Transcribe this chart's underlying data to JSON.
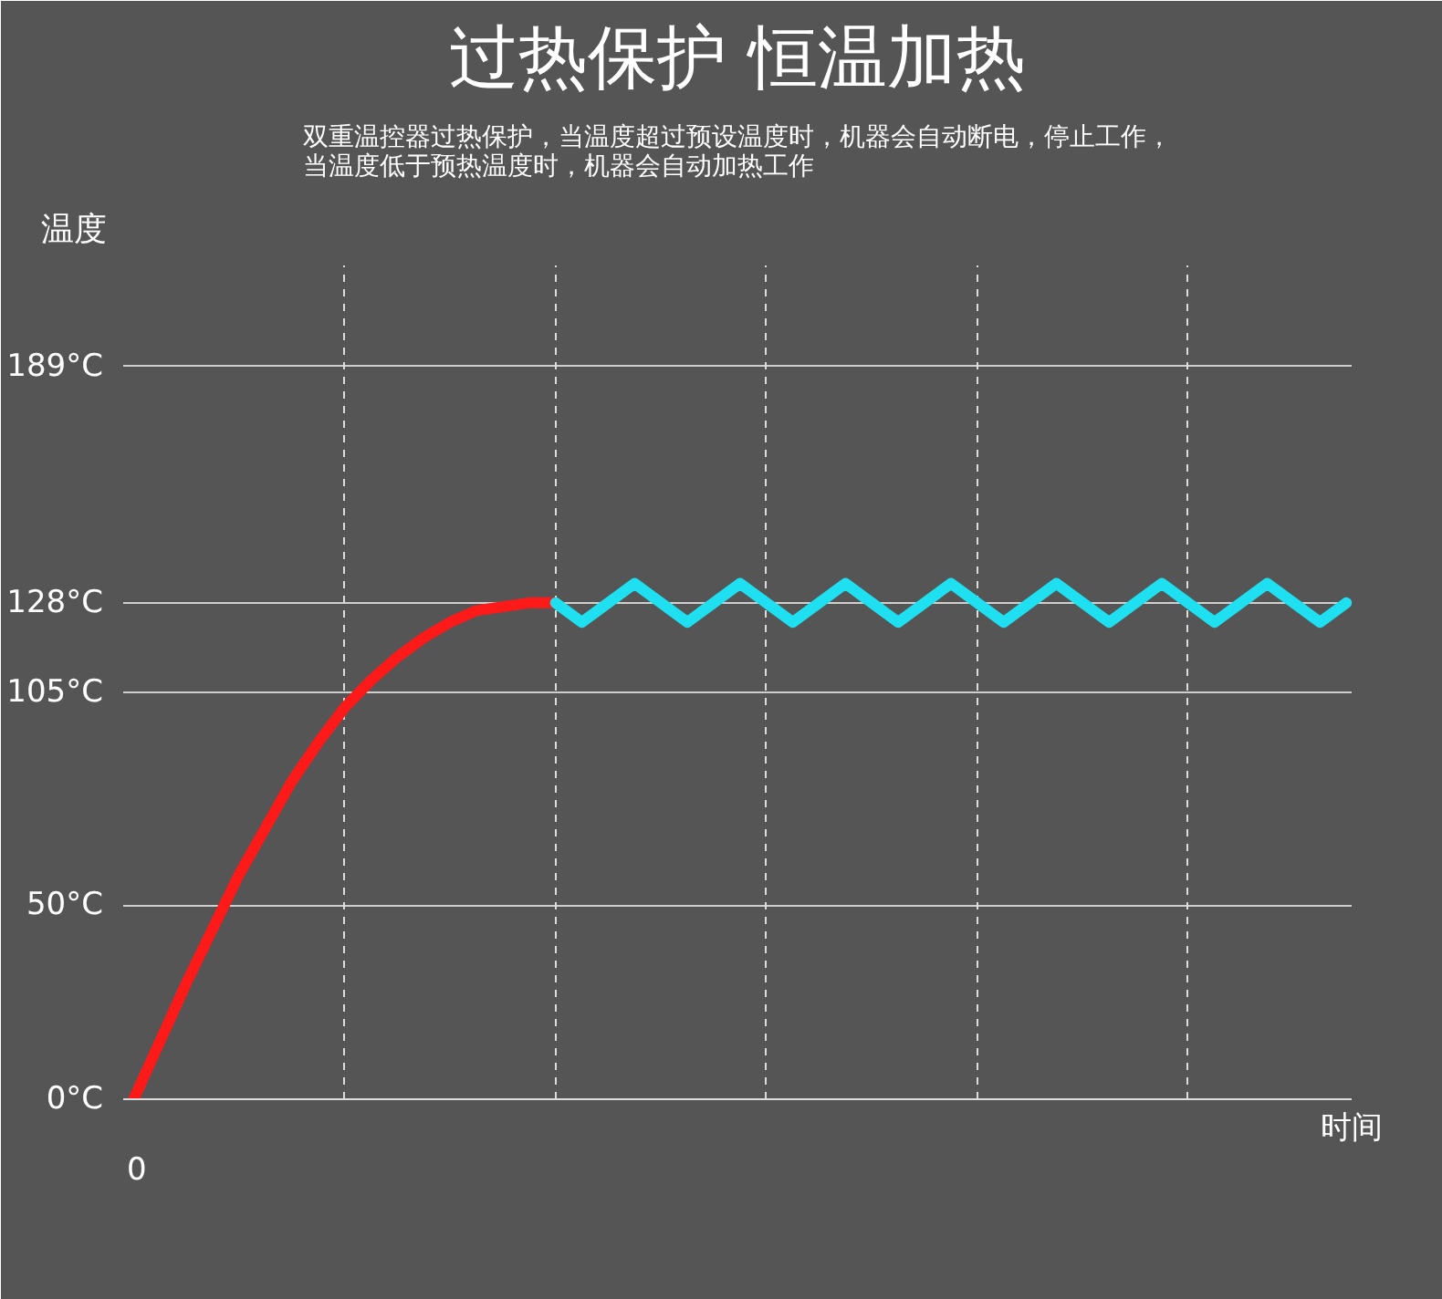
{
  "chart_data": {
    "type": "line",
    "title": "过热保护 恒温加热",
    "subtitle": "双重温控器过热保护，当温度超过预设温度时，机器会自动断电，停止工作，当温度低于预热温度时，机器会自动加热工作",
    "ylabel": "温度",
    "xlabel": "时间",
    "annotations": [
      "0"
    ],
    "categories": [
      null,
      null,
      null,
      null,
      null,
      null,
      null,
      null,
      null,
      null,
      null,
      null,
      null,
      null,
      null,
      null,
      null,
      null,
      null,
      null,
      null,
      null,
      null,
      null,
      null,
      null,
      null,
      null,
      null,
      null,
      null,
      null,
      null,
      null,
      null,
      null,
      null,
      null,
      null,
      null,
      null,
      null,
      null,
      null,
      null,
      null,
      null
    ],
    "ylim": [
      0,
      215
    ],
    "yticks": [
      {
        "value": 0,
        "label": "0°C"
      },
      {
        "value": 50,
        "label": "50°C"
      },
      {
        "value": 105,
        "label": "105°C"
      },
      {
        "value": 128,
        "label": "128°C"
      },
      {
        "value": 189,
        "label": "189°C"
      }
    ],
    "grid": true,
    "series": [
      {
        "color": "#ff1a1a",
        "values": [
          0,
          15,
          30,
          44,
          58,
          70,
          82,
          92,
          101,
          108,
          114,
          119,
          123,
          126,
          127,
          128,
          128,
          null,
          null,
          null,
          null,
          null,
          null,
          null,
          null,
          null,
          null,
          null,
          null,
          null,
          null,
          null,
          null,
          null,
          null,
          null,
          null,
          null,
          null,
          null,
          null,
          null,
          null,
          null,
          null,
          null,
          null
        ]
      },
      {
        "color": "#1ee0f0",
        "values": [
          null,
          null,
          null,
          null,
          null,
          null,
          null,
          null,
          null,
          null,
          null,
          null,
          null,
          null,
          null,
          null,
          128,
          123,
          128,
          133,
          128,
          123,
          128,
          133,
          128,
          123,
          128,
          133,
          128,
          123,
          128,
          133,
          128,
          123,
          128,
          133,
          128,
          123,
          128,
          133,
          128,
          123,
          128,
          133,
          128,
          123,
          128
        ]
      }
    ]
  }
}
